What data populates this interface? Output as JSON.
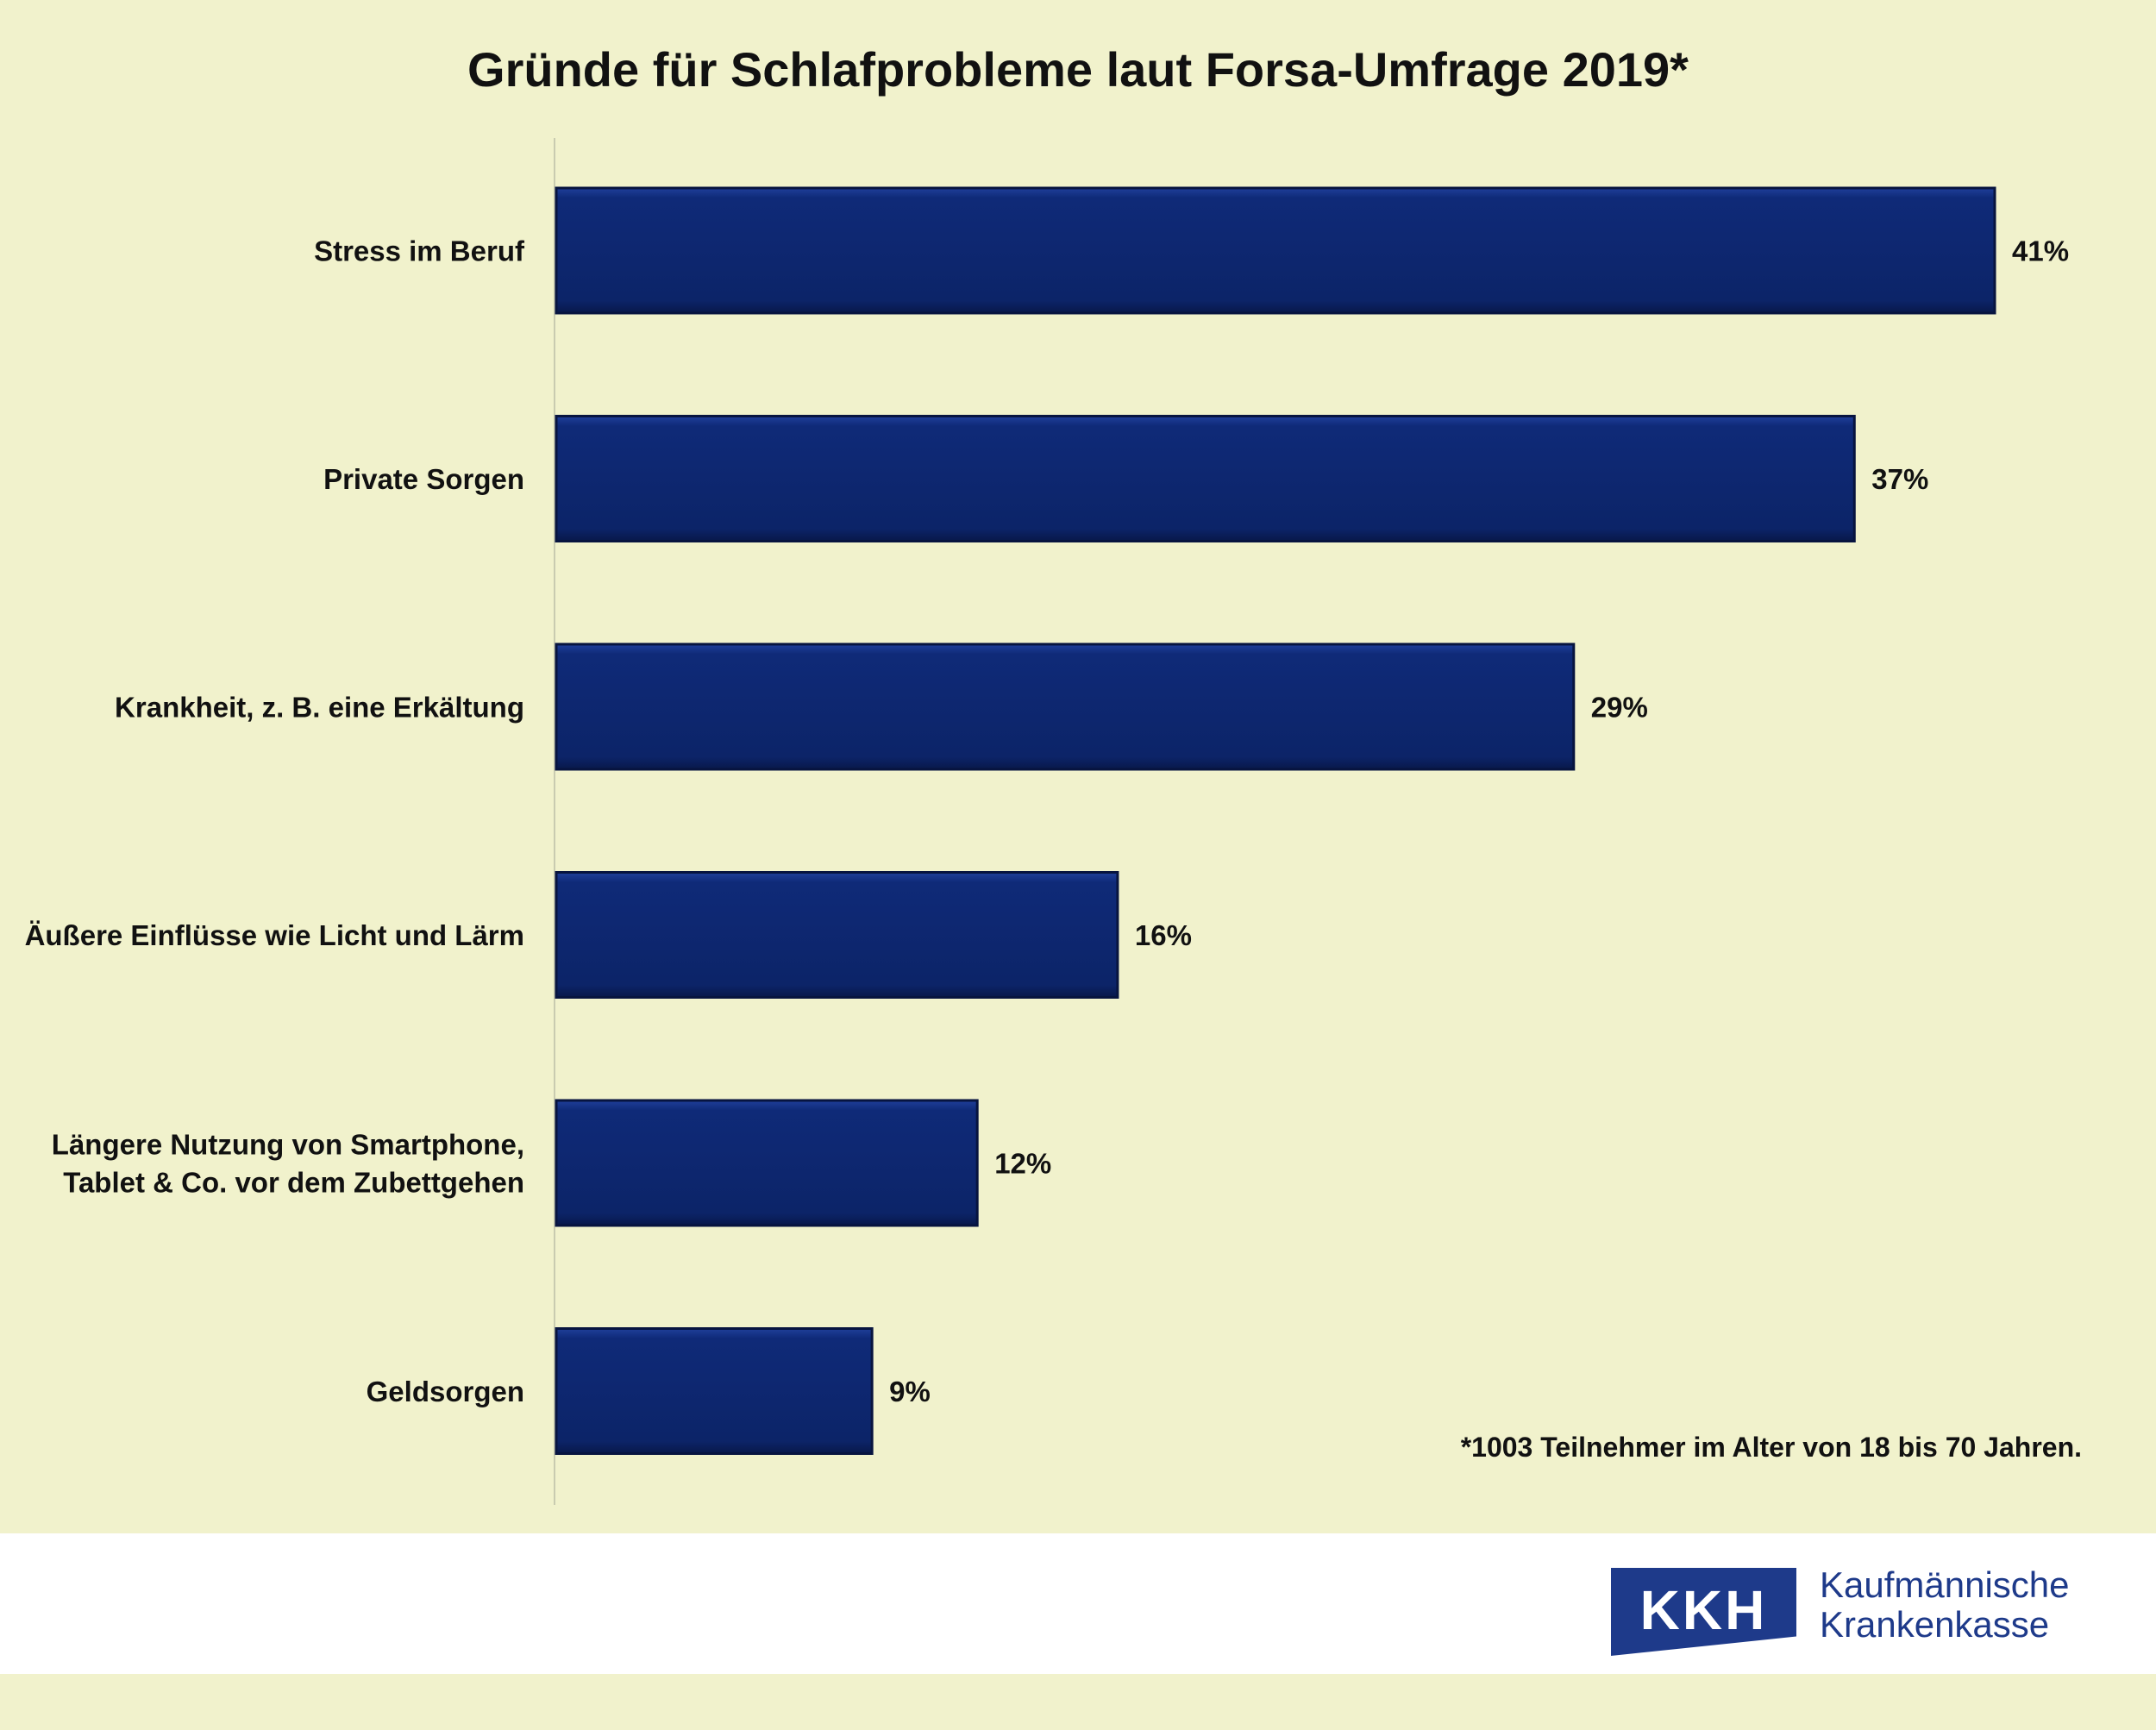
{
  "chart_data": {
    "type": "bar",
    "orientation": "horizontal",
    "title": "Gründe für Schlafprobleme laut Forsa-Umfrage 2019*",
    "categories": [
      [
        "Stress im Beruf"
      ],
      [
        "Private Sorgen"
      ],
      [
        "Krankheit, z. B. eine Erkältung"
      ],
      [
        "Äußere Einflüsse wie Licht und Lärm"
      ],
      [
        "Längere Nutzung von Smartphone,",
        "Tablet & Co. vor dem Zubettgehen"
      ],
      [
        "Geldsorgen"
      ]
    ],
    "values": [
      41,
      37,
      29,
      16,
      12,
      9
    ],
    "value_labels": [
      "41%",
      "37%",
      "29%",
      "16%",
      "12%",
      "9%"
    ],
    "unit": "%",
    "xlim": [
      0,
      41
    ],
    "bar_color": "#0f2a78",
    "grid": false,
    "footnote": "*1003 Teilnehmer im Alter von 18 bis 70 Jahren."
  },
  "brand": {
    "abbreviation": "KKH",
    "name_line1": "Kaufmännische",
    "name_line2": "Krankenkasse",
    "color": "#1e3a8a"
  },
  "background_color": "#f1f2cc"
}
